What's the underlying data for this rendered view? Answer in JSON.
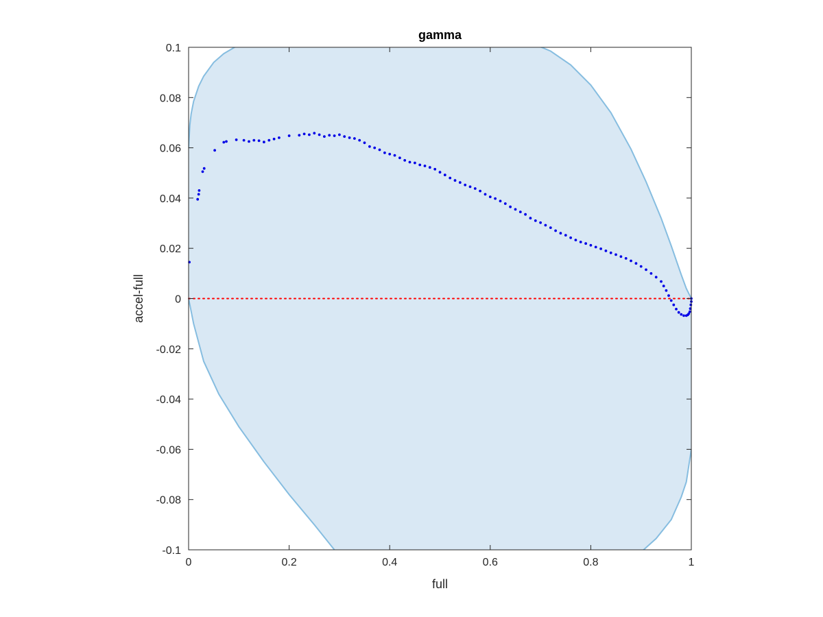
{
  "chart_data": {
    "type": "scatter",
    "title": "gamma",
    "xlabel": "full",
    "ylabel": "accel-full",
    "xlim": [
      0,
      1
    ],
    "ylim": [
      -0.1,
      0.1
    ],
    "xticks": [
      0,
      0.2,
      0.4,
      0.6,
      0.8,
      1
    ],
    "xtick_labels": [
      "0",
      "0.2",
      "0.4",
      "0.6",
      "0.8",
      "1"
    ],
    "yticks": [
      -0.1,
      -0.08,
      -0.06,
      -0.04,
      -0.02,
      0,
      0.02,
      0.04,
      0.06,
      0.08,
      0.1
    ],
    "ytick_labels": [
      "-0.1",
      "-0.08",
      "-0.06",
      "-0.04",
      "-0.02",
      "0",
      "0.02",
      "0.04",
      "0.06",
      "0.08",
      "0.1"
    ],
    "grid": false,
    "reference_line": {
      "y": 0,
      "style": "dotted",
      "color": "#ff0000"
    },
    "band": {
      "fill_color": "#d9e8f4",
      "edge_color": "#86bde0",
      "upper": [
        [
          0,
          0.06
        ],
        [
          0.0025,
          0.069
        ],
        [
          0.005,
          0.0735
        ],
        [
          0.01,
          0.0785
        ],
        [
          0.02,
          0.0845
        ],
        [
          0.03,
          0.0885
        ],
        [
          0.05,
          0.094
        ],
        [
          0.07,
          0.0975
        ],
        [
          0.1,
          0.101
        ]
      ],
      "lower": [
        [
          0,
          0
        ],
        [
          0.01,
          -0.01
        ],
        [
          0.03,
          -0.025
        ],
        [
          0.06,
          -0.038
        ],
        [
          0.1,
          -0.051
        ],
        [
          0.15,
          -0.065
        ],
        [
          0.2,
          -0.078
        ],
        [
          0.25,
          -0.09
        ],
        [
          0.29,
          -0.1
        ],
        [
          0.31,
          -0.103
        ]
      ],
      "right_upper": [
        [
          0.69,
          0.101
        ],
        [
          0.72,
          0.0985
        ],
        [
          0.76,
          0.093
        ],
        [
          0.8,
          0.085
        ],
        [
          0.84,
          0.074
        ],
        [
          0.88,
          0.0595
        ],
        [
          0.91,
          0.0465
        ],
        [
          0.94,
          0.032
        ],
        [
          0.96,
          0.021
        ],
        [
          0.98,
          0.0095
        ],
        [
          0.99,
          0.004
        ],
        [
          1.0,
          0
        ]
      ],
      "right_lower": [
        [
          0.89,
          -0.103
        ],
        [
          0.905,
          -0.1
        ],
        [
          0.93,
          -0.0955
        ],
        [
          0.96,
          -0.088
        ],
        [
          0.98,
          -0.079
        ],
        [
          0.99,
          -0.073
        ],
        [
          1.0,
          -0.06
        ]
      ]
    },
    "series": [
      {
        "color": "#0000e6",
        "points": [
          [
            0.0015,
            0.0145
          ],
          [
            0.018,
            0.0395
          ],
          [
            0.02,
            0.0415
          ],
          [
            0.021,
            0.043
          ],
          [
            0.028,
            0.0505
          ],
          [
            0.031,
            0.0518
          ],
          [
            0.052,
            0.059
          ],
          [
            0.07,
            0.0622
          ],
          [
            0.075,
            0.0625
          ],
          [
            0.095,
            0.0632
          ],
          [
            0.11,
            0.063
          ],
          [
            0.12,
            0.0625
          ],
          [
            0.13,
            0.063
          ],
          [
            0.14,
            0.0628
          ],
          [
            0.15,
            0.0623
          ],
          [
            0.16,
            0.063
          ],
          [
            0.17,
            0.0635
          ],
          [
            0.18,
            0.064
          ],
          [
            0.2,
            0.0648
          ],
          [
            0.22,
            0.065
          ],
          [
            0.23,
            0.0655
          ],
          [
            0.24,
            0.0652
          ],
          [
            0.25,
            0.0658
          ],
          [
            0.26,
            0.0652
          ],
          [
            0.27,
            0.0645
          ],
          [
            0.28,
            0.065
          ],
          [
            0.29,
            0.0648
          ],
          [
            0.3,
            0.0652
          ],
          [
            0.31,
            0.0645
          ],
          [
            0.32,
            0.064
          ],
          [
            0.33,
            0.0637
          ],
          [
            0.34,
            0.063
          ],
          [
            0.35,
            0.062
          ],
          [
            0.36,
            0.0605
          ],
          [
            0.37,
            0.06
          ],
          [
            0.38,
            0.0592
          ],
          [
            0.39,
            0.058
          ],
          [
            0.4,
            0.0575
          ],
          [
            0.41,
            0.057
          ],
          [
            0.42,
            0.056
          ],
          [
            0.43,
            0.055
          ],
          [
            0.44,
            0.0543
          ],
          [
            0.45,
            0.054
          ],
          [
            0.46,
            0.0532
          ],
          [
            0.47,
            0.0528
          ],
          [
            0.48,
            0.0522
          ],
          [
            0.49,
            0.0515
          ],
          [
            0.5,
            0.0503
          ],
          [
            0.51,
            0.0492
          ],
          [
            0.52,
            0.048
          ],
          [
            0.53,
            0.047
          ],
          [
            0.54,
            0.0462
          ],
          [
            0.55,
            0.0452
          ],
          [
            0.56,
            0.0445
          ],
          [
            0.57,
            0.0438
          ],
          [
            0.58,
            0.0428
          ],
          [
            0.59,
            0.0415
          ],
          [
            0.6,
            0.0405
          ],
          [
            0.61,
            0.0398
          ],
          [
            0.62,
            0.0388
          ],
          [
            0.63,
            0.0378
          ],
          [
            0.64,
            0.0365
          ],
          [
            0.65,
            0.0355
          ],
          [
            0.66,
            0.0345
          ],
          [
            0.67,
            0.0335
          ],
          [
            0.68,
            0.032
          ],
          [
            0.69,
            0.031
          ],
          [
            0.7,
            0.0302
          ],
          [
            0.71,
            0.0292
          ],
          [
            0.72,
            0.0282
          ],
          [
            0.73,
            0.027
          ],
          [
            0.74,
            0.026
          ],
          [
            0.75,
            0.0252
          ],
          [
            0.76,
            0.0242
          ],
          [
            0.77,
            0.0233
          ],
          [
            0.78,
            0.0225
          ],
          [
            0.79,
            0.0219
          ],
          [
            0.8,
            0.0212
          ],
          [
            0.81,
            0.0205
          ],
          [
            0.82,
            0.0198
          ],
          [
            0.83,
            0.019
          ],
          [
            0.84,
            0.0182
          ],
          [
            0.85,
            0.0175
          ],
          [
            0.86,
            0.0167
          ],
          [
            0.87,
            0.016
          ],
          [
            0.88,
            0.015
          ],
          [
            0.89,
            0.014
          ],
          [
            0.9,
            0.0128
          ],
          [
            0.91,
            0.0115
          ],
          [
            0.92,
            0.01
          ],
          [
            0.93,
            0.0085
          ],
          [
            0.94,
            0.0068
          ],
          [
            0.945,
            0.005
          ],
          [
            0.95,
            0.0032
          ],
          [
            0.955,
            0.0012
          ],
          [
            0.96,
            -0.0008
          ],
          [
            0.965,
            -0.0025
          ],
          [
            0.97,
            -0.0042
          ],
          [
            0.975,
            -0.0055
          ],
          [
            0.98,
            -0.0063
          ],
          [
            0.985,
            -0.0068
          ],
          [
            0.99,
            -0.0068
          ],
          [
            0.993,
            -0.0065
          ],
          [
            0.995,
            -0.006
          ],
          [
            0.997,
            -0.0052
          ],
          [
            0.998,
            -0.004
          ],
          [
            0.999,
            -0.0025
          ],
          [
            1.0,
            -0.0012
          ],
          [
            1.0,
            0.0
          ]
        ]
      }
    ]
  }
}
